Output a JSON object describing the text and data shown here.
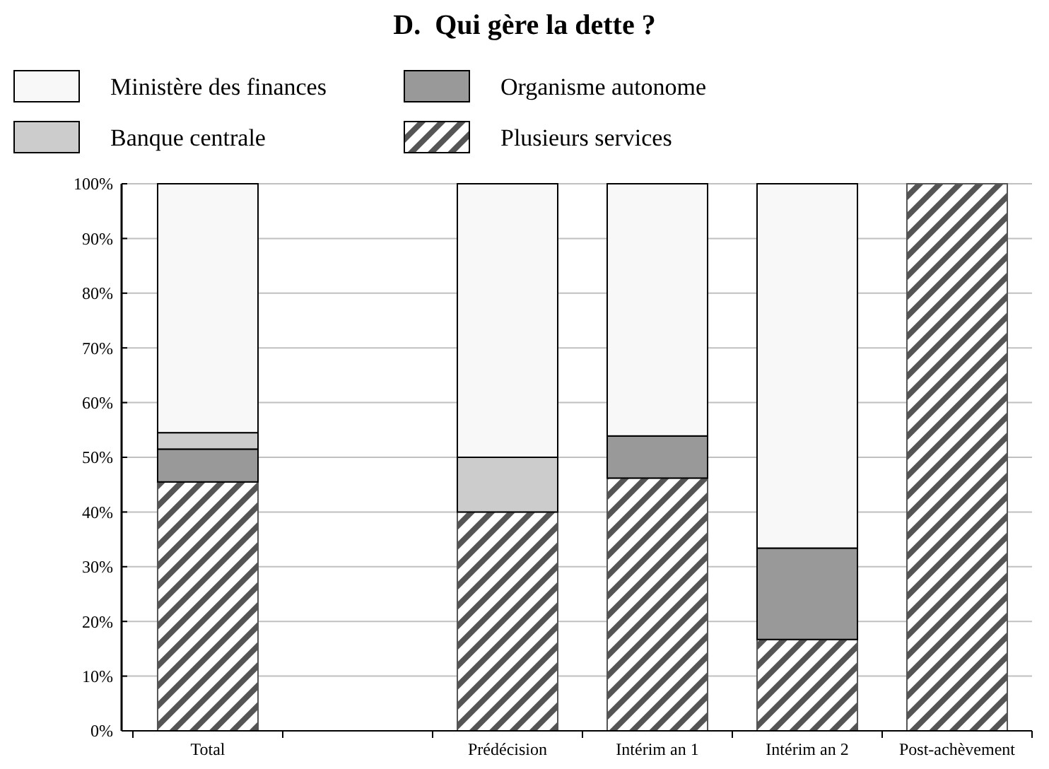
{
  "chart_data": {
    "type": "bar",
    "title": "D.  Qui gère la dette ?",
    "stacked": true,
    "categories": [
      "Total",
      null,
      "Prédécision",
      "Intérim an 1",
      "Intérim an 2",
      "Post-achèvement"
    ],
    "series": [
      {
        "name": "Plusieurs services",
        "color": "#555555",
        "values": [
          45.5,
          null,
          40,
          46.2,
          16.7,
          100
        ]
      },
      {
        "name": "Organisme autonome",
        "color": "#999999",
        "values": [
          6,
          null,
          0,
          7.7,
          16.7,
          0
        ]
      },
      {
        "name": "Banque centrale",
        "color": "#cccccc",
        "values": [
          3,
          null,
          10,
          0,
          0,
          0
        ]
      },
      {
        "name": "Ministère des finances",
        "color": "#f8f8f8",
        "values": [
          45.5,
          null,
          50,
          46.1,
          66.6,
          0
        ]
      }
    ],
    "ylim": [
      0,
      100
    ],
    "yticks": [
      {
        "value": 0,
        "label": "0%"
      },
      {
        "value": 10,
        "label": "10%"
      },
      {
        "value": 20,
        "label": "20%"
      },
      {
        "value": 30,
        "label": "30%"
      },
      {
        "value": 40,
        "label": "40%"
      },
      {
        "value": 50,
        "label": "50%"
      },
      {
        "value": 60,
        "label": "60%"
      },
      {
        "value": 70,
        "label": "70%"
      },
      {
        "value": 80,
        "label": "80%"
      },
      {
        "value": 90,
        "label": "90%"
      },
      {
        "value": 100,
        "label": "100%"
      }
    ],
    "grid": "y",
    "legend": "top"
  }
}
